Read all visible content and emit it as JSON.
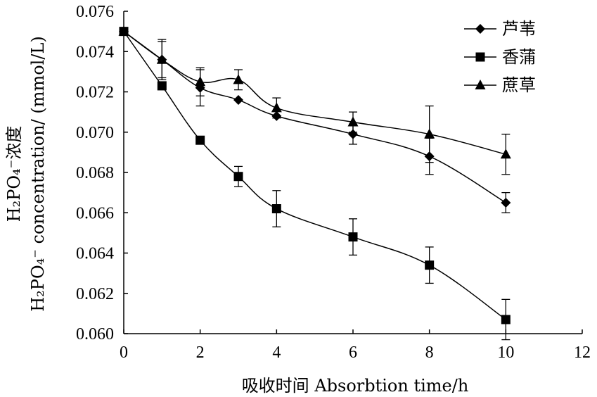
{
  "chart_data": {
    "type": "line",
    "title": "",
    "xlabel": "吸收时间 Absorbtion time/h",
    "ylabel_line1": "H₂PO₄⁻浓度",
    "ylabel_line2": "H₂PO₄⁻ concentration/ (mmol/L)",
    "xlim": [
      0,
      12
    ],
    "ylim": [
      0.06,
      0.076
    ],
    "x_ticks": [
      "0",
      "2",
      "4",
      "6",
      "8",
      "10",
      "12"
    ],
    "y_ticks": [
      "0.060",
      "0.062",
      "0.064",
      "0.066",
      "0.068",
      "0.070",
      "0.072",
      "0.074",
      "0.076"
    ],
    "grid": false,
    "legend_position": "top-right",
    "series": [
      {
        "name": "芦苇",
        "marker": "diamond",
        "x": [
          0,
          1,
          2,
          3,
          4,
          6,
          8,
          10
        ],
        "y": [
          0.075,
          0.0736,
          0.0722,
          0.0716,
          0.0708,
          0.0699,
          0.0688,
          0.0665
        ],
        "err": [
          0,
          0.0009,
          0.0009,
          0,
          0,
          0.0005,
          0.0009,
          0.0005
        ]
      },
      {
        "name": "香蒲",
        "marker": "square",
        "x": [
          0,
          1,
          2,
          3,
          4,
          6,
          8,
          10
        ],
        "y": [
          0.075,
          0.0723,
          0.0696,
          0.0678,
          0.0662,
          0.0648,
          0.0634,
          0.0607
        ],
        "err": [
          0,
          0,
          0,
          0.0005,
          0.0009,
          0.0009,
          0.0009,
          0.001
        ]
      },
      {
        "name": "蔗草",
        "marker": "triangle",
        "x": [
          0,
          1,
          2,
          3,
          4,
          6,
          8,
          10
        ],
        "y": [
          0.075,
          0.0736,
          0.0725,
          0.0726,
          0.0712,
          0.0705,
          0.0699,
          0.0689
        ],
        "err": [
          0,
          0.001,
          0.0007,
          0.0005,
          0.0005,
          0.0005,
          0.0014,
          0.001
        ]
      }
    ]
  }
}
